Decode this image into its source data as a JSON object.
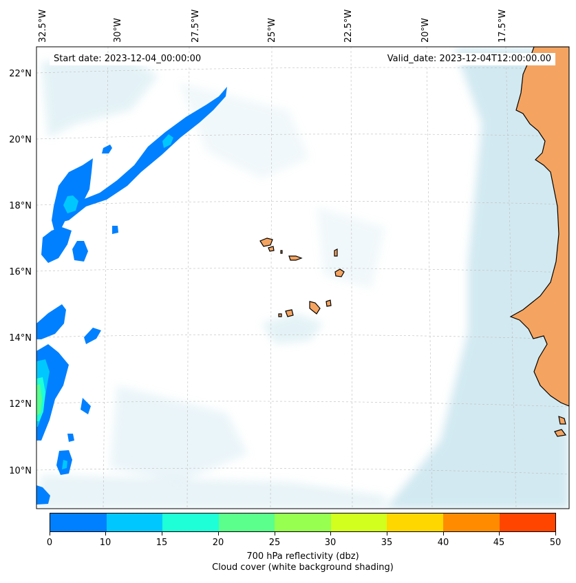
{
  "map": {
    "start_date_label": "Start date: 2023-12-04_00:00:00",
    "valid_date_label": "Valid_date: 2023-12-04T12:00:00.00",
    "longitude_labels": [
      "32.5°W",
      "30°W",
      "27.5°W",
      "25°W",
      "22.5°W",
      "20°W",
      "17.5°W"
    ],
    "latitude_labels": [
      "22°N",
      "20°N",
      "18°N",
      "16°N",
      "14°N",
      "12°N",
      "10°N"
    ],
    "colors": {
      "land": "#f4a460",
      "cloud": "#add8e6",
      "coast": "#000000"
    }
  },
  "colorbar": {
    "levels": [
      "0",
      "10",
      "15",
      "20",
      "25",
      "30",
      "35",
      "40",
      "45",
      "50"
    ],
    "colors": [
      "#0080ff",
      "#00c8ff",
      "#1effd8",
      "#5aff8c",
      "#96ff50",
      "#d2ff1e",
      "#ffd700",
      "#ff8c00",
      "#ff4500"
    ],
    "label_line1": "700 hPa reflectivity (dbz)",
    "label_line2": "Cloud cover (white background shading)"
  }
}
